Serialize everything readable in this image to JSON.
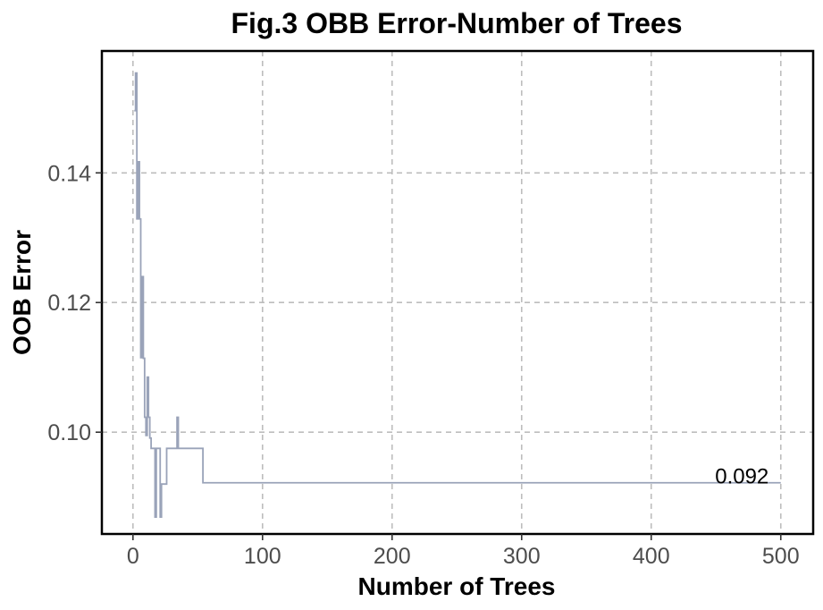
{
  "chart_data": {
    "type": "line",
    "title": "Fig.3 OBB Error-Number of Trees",
    "xlabel": "Number of Trees",
    "ylabel": "OOB Error",
    "xlim": [
      -24,
      525
    ],
    "ylim": [
      0.0843,
      0.1588
    ],
    "x_ticks": [
      0,
      100,
      200,
      300,
      400,
      500
    ],
    "x_tick_labels": [
      "0",
      "100",
      "200",
      "300",
      "400",
      "500"
    ],
    "y_ticks": [
      0.1,
      0.12,
      0.14
    ],
    "y_tick_labels": [
      "0.10",
      "0.12",
      "0.14"
    ],
    "grid": true,
    "grid_style": "dashed",
    "legend": "none",
    "series": [
      {
        "color": "#9aa3b9",
        "step": true,
        "x": [
          1,
          2,
          3,
          4,
          5,
          6,
          7,
          8,
          9,
          10,
          11,
          12,
          13,
          14,
          15,
          16,
          17,
          18,
          19,
          20,
          21,
          22,
          23,
          24,
          25,
          26,
          27,
          28,
          29,
          30,
          31,
          32,
          33,
          34,
          35,
          36,
          40,
          45,
          50,
          53,
          54,
          60,
          100,
          200,
          300,
          400,
          440,
          470,
          500
        ],
        "y": [
          0.1496,
          0.1554,
          0.1329,
          0.1417,
          0.1329,
          0.1115,
          0.124,
          0.1114,
          0.1023,
          0.0995,
          0.1085,
          0.1023,
          0.0991,
          0.0975,
          0.0975,
          0.0975,
          0.0869,
          0.0975,
          0.0975,
          0.0975,
          0.0869,
          0.092,
          0.092,
          0.092,
          0.092,
          0.0975,
          0.0975,
          0.0975,
          0.0975,
          0.0975,
          0.0975,
          0.0975,
          0.0975,
          0.1023,
          0.0975,
          0.0975,
          0.0975,
          0.0975,
          0.0975,
          0.0975,
          0.0922,
          0.0922,
          0.0922,
          0.0922,
          0.0922,
          0.0922,
          0.0922,
          0.0922,
          0.0922
        ]
      }
    ],
    "annotation": {
      "text": "0.092",
      "x": 470,
      "y": 0.0922
    }
  }
}
